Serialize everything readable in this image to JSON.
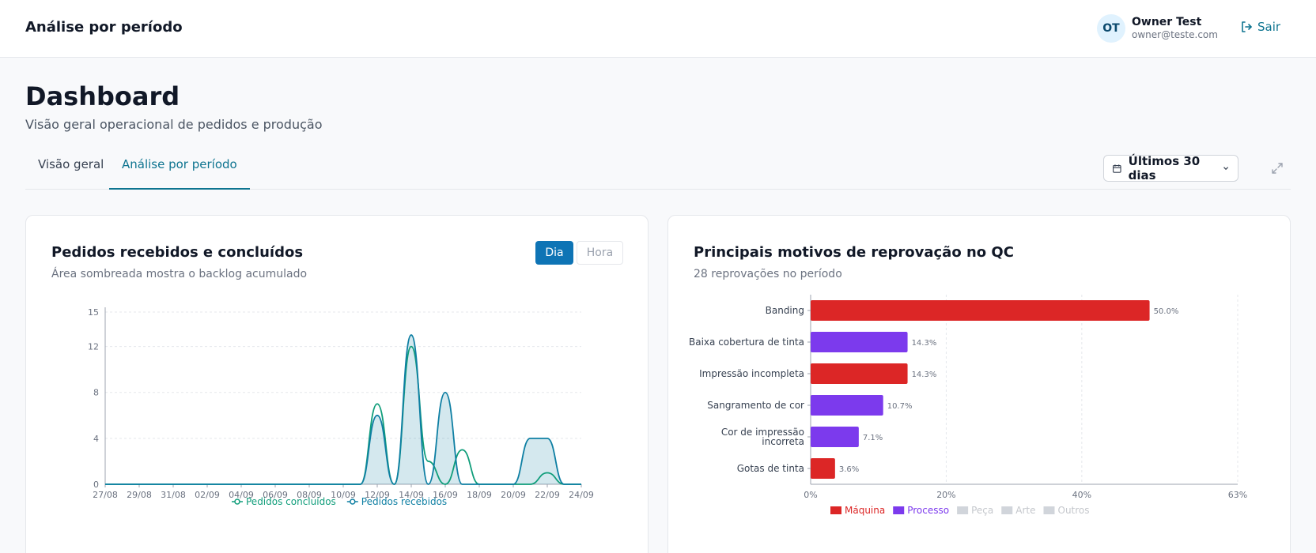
{
  "header": {
    "title": "Análise por período",
    "user": {
      "initials": "OT",
      "name": "Owner Test",
      "email": "owner@teste.com"
    },
    "logout_label": "Sair"
  },
  "page": {
    "title": "Dashboard",
    "subtitle": "Visão geral operacional de pedidos e produção"
  },
  "tabs": [
    {
      "label": "Visão geral",
      "active": false
    },
    {
      "label": "Análise por período",
      "active": true
    }
  ],
  "date_range": {
    "label": "Últimos 30 dias"
  },
  "colors": {
    "accent": "#0e7490",
    "primary_button": "#0e74b5",
    "green": "#0f9d7a",
    "blue": "#0e7fa3",
    "red": "#dc2626",
    "purple": "#7c3aed"
  },
  "card_orders": {
    "title": "Pedidos recebidos e concluídos",
    "subtitle": "Área sombreada mostra o backlog acumulado",
    "toggle": [
      "Dia",
      "Hora"
    ],
    "toggle_active": "Dia"
  },
  "card_qc": {
    "title": "Principais motivos de reprovação no QC",
    "subtitle": "28 reprovações no período"
  },
  "chart_data": [
    {
      "type": "line",
      "x": [
        "27/08",
        "28/08",
        "29/08",
        "30/08",
        "31/08",
        "01/09",
        "02/09",
        "03/09",
        "04/09",
        "05/09",
        "06/09",
        "07/09",
        "08/09",
        "09/09",
        "10/09",
        "11/09",
        "12/09",
        "13/09",
        "14/09",
        "15/09",
        "16/09",
        "17/09",
        "18/09",
        "19/09",
        "20/09",
        "21/09",
        "22/09",
        "23/09",
        "24/09"
      ],
      "xticks": [
        "27/08",
        "29/08",
        "31/08",
        "02/09",
        "04/09",
        "06/09",
        "08/09",
        "10/09",
        "12/09",
        "14/09",
        "16/09",
        "18/09",
        "20/09",
        "22/09",
        "24/09"
      ],
      "yticks": [
        0,
        4,
        8,
        12,
        15
      ],
      "ylim": [
        0,
        15
      ],
      "series": [
        {
          "name": "Pedidos concluídos",
          "color": "#0f9d7a",
          "values": [
            0,
            0,
            0,
            0,
            0,
            0,
            0,
            0,
            0,
            0,
            0,
            0,
            0,
            0,
            0,
            0,
            7,
            0,
            12,
            2,
            0,
            3,
            0,
            0,
            0,
            0,
            1,
            0,
            0
          ]
        },
        {
          "name": "Pedidos recebidos",
          "color": "#0e7fa3",
          "values": [
            0,
            0,
            0,
            0,
            0,
            0,
            0,
            0,
            0,
            0,
            0,
            0,
            0,
            0,
            0,
            0,
            6,
            0,
            13,
            0,
            8,
            0,
            0,
            0,
            0,
            4,
            4,
            0,
            0
          ]
        }
      ],
      "backlog_shaded": true,
      "legend": "bottom"
    },
    {
      "type": "bar",
      "orientation": "horizontal",
      "categories": [
        "Banding",
        "Baixa cobertura de tinta",
        "Impressão incompleta",
        "Sangramento de cor",
        "Cor de impressão incorreta",
        "Gotas de tinta"
      ],
      "category_lines": [
        [
          "Banding"
        ],
        [
          "Baixa cobertura de tinta"
        ],
        [
          "Impressão incompleta"
        ],
        [
          "Sangramento de cor"
        ],
        [
          "Cor de impressão",
          "incorreta"
        ],
        [
          "Gotas de tinta"
        ]
      ],
      "values": [
        50.0,
        14.3,
        14.3,
        10.7,
        7.1,
        3.6
      ],
      "value_labels": [
        "50.0%",
        "14.3%",
        "14.3%",
        "10.7%",
        "7.1%",
        "3.6%"
      ],
      "groups": [
        "Máquina",
        "Processo",
        "Máquina",
        "Processo",
        "Processo",
        "Máquina"
      ],
      "xticks": [
        "0%",
        "20%",
        "40%",
        "63%"
      ],
      "xtick_values": [
        0,
        20,
        40,
        63
      ],
      "xlim": [
        0,
        63
      ],
      "legend": [
        {
          "name": "Máquina",
          "color": "#dc2626",
          "active": true
        },
        {
          "name": "Processo",
          "color": "#7c3aed",
          "active": true
        },
        {
          "name": "Peça",
          "color": "#d1d5db",
          "active": false
        },
        {
          "name": "Arte",
          "color": "#d1d5db",
          "active": false
        },
        {
          "name": "Outros",
          "color": "#d1d5db",
          "active": false
        }
      ]
    }
  ]
}
